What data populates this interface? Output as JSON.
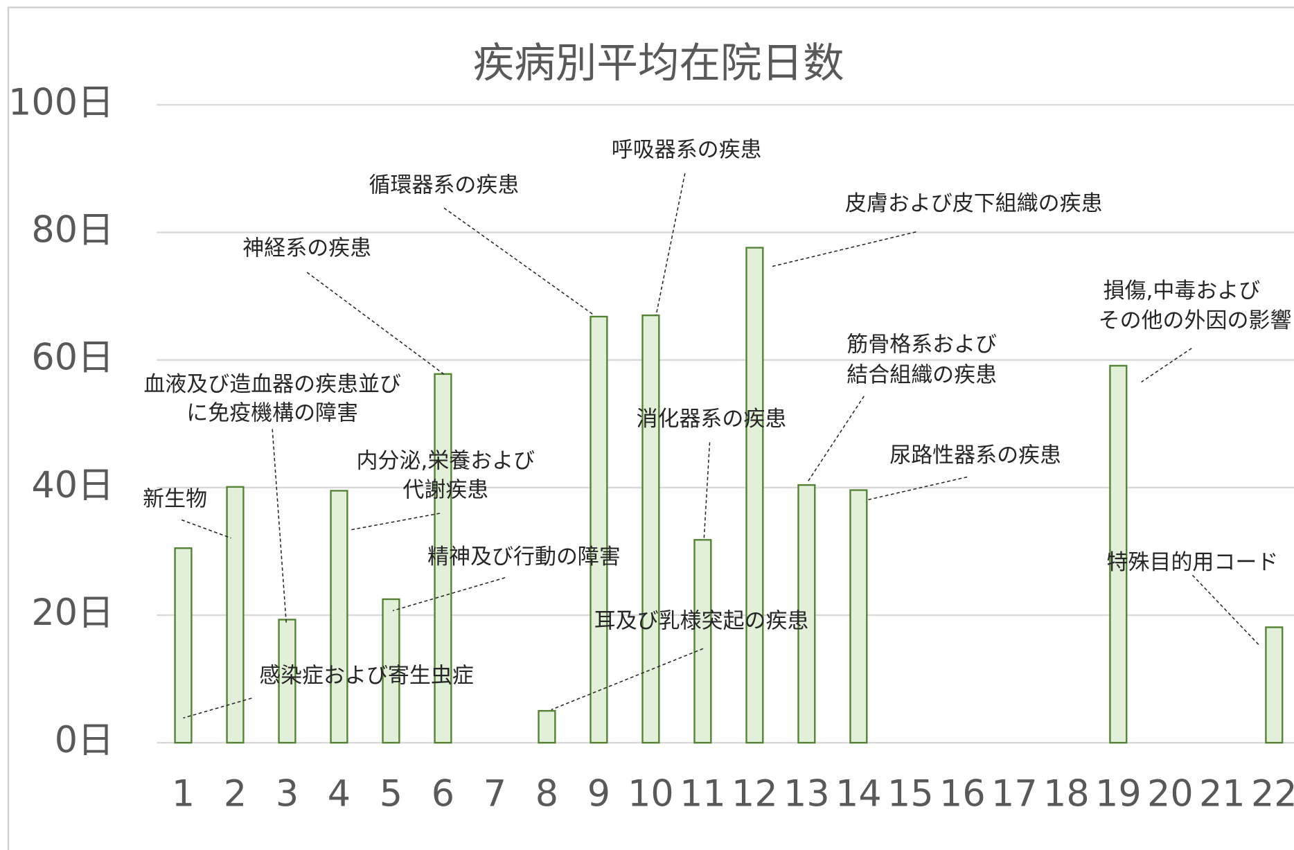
{
  "chart_data": {
    "type": "bar",
    "title": "疾病別平均在院日数",
    "categories": [
      "1",
      "2",
      "3",
      "4",
      "5",
      "6",
      "7",
      "8",
      "9",
      "10",
      "11",
      "12",
      "13",
      "14",
      "15",
      "16",
      "17",
      "18",
      "19",
      "20",
      "21",
      "22"
    ],
    "values": [
      30.5,
      40.1,
      19.3,
      39.5,
      22.5,
      57.8,
      null,
      5.0,
      66.8,
      67.0,
      31.8,
      77.6,
      40.4,
      39.6,
      null,
      null,
      null,
      null,
      59.1,
      null,
      null,
      18.1
    ],
    "color": "#e2f0d9",
    "edge_color": "#548235",
    "ylim": [
      0,
      100
    ],
    "yticks": [
      {
        "value": 0,
        "label": "0日"
      },
      {
        "value": 20,
        "label": "20日"
      },
      {
        "value": 40,
        "label": "40日"
      },
      {
        "value": 60,
        "label": "60日"
      },
      {
        "value": 80,
        "label": "80日"
      },
      {
        "value": 100,
        "label": "100日"
      }
    ],
    "grid": true,
    "annotations": [
      {
        "lines": [
          "新生物"
        ]
      },
      {
        "lines": [
          "感染症および寄生虫症"
        ]
      },
      {
        "lines": [
          "血液及び造血器の疾患並び",
          "に免疫機構の障害"
        ]
      },
      {
        "lines": [
          "内分泌,栄養および",
          "代謝疾患"
        ]
      },
      {
        "lines": [
          "精神及び行動の障害"
        ]
      },
      {
        "lines": [
          "神経系の疾患"
        ]
      },
      {
        "lines": [
          "耳及び乳様突起の疾患"
        ]
      },
      {
        "lines": [
          "循環器系の疾患"
        ]
      },
      {
        "lines": [
          "呼吸器系の疾患"
        ]
      },
      {
        "lines": [
          "消化器系の疾患"
        ]
      },
      {
        "lines": [
          "皮膚および皮下組織の疾患"
        ]
      },
      {
        "lines": [
          "筋骨格系および",
          "結合組織の疾患"
        ]
      },
      {
        "lines": [
          "尿路性器系の疾患"
        ]
      },
      {
        "lines": [
          "損傷,中毒および",
          "その他の外因の影響"
        ]
      },
      {
        "lines": [
          "特殊目的用コード"
        ]
      }
    ]
  }
}
